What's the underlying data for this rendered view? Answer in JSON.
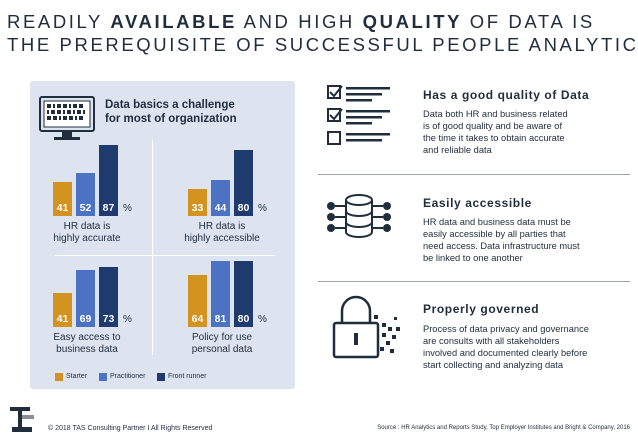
{
  "headline": {
    "line1_a": "READILY ",
    "line1_b": "AVAILABLE",
    "line1_c": " AND HIGH ",
    "line1_d": "QUALITY",
    "line1_e": " OF DATA IS",
    "line2": "THE PREREQUISITE OF SUCCESSFUL PEOPLE ANALYTICS"
  },
  "panel": {
    "title_line1": "Data basics a challenge",
    "title_line2": "for most of organization",
    "pct_symbol": "%"
  },
  "colors": {
    "starter": "#d4921f",
    "practitioner": "#4c72c4",
    "front_runner": "#1e3a6e",
    "panel_bg": "#dde4f0"
  },
  "chart_data": [
    {
      "type": "bar",
      "title_line1": "HR data is",
      "title_line2": "highly accurate",
      "categories": [
        "Starter",
        "Practitioner",
        "Front runner"
      ],
      "values": [
        41,
        52,
        87
      ],
      "ylim": [
        0,
        100
      ]
    },
    {
      "type": "bar",
      "title_line1": "HR data is",
      "title_line2": "highly accessible",
      "categories": [
        "Starter",
        "Practitioner",
        "Front runner"
      ],
      "values": [
        33,
        44,
        80
      ],
      "ylim": [
        0,
        100
      ]
    },
    {
      "type": "bar",
      "title_line1": "Easy access to",
      "title_line2": "business data",
      "categories": [
        "Starter",
        "Practitioner",
        "Front runner"
      ],
      "values": [
        41,
        69,
        73
      ],
      "ylim": [
        0,
        100
      ]
    },
    {
      "type": "bar",
      "title_line1": "Policy for use",
      "title_line2": "personal data",
      "categories": [
        "Starter",
        "Practitioner",
        "Front runner"
      ],
      "values": [
        64,
        81,
        80
      ],
      "ylim": [
        0,
        100
      ]
    }
  ],
  "legend": {
    "starter": "Starter",
    "practitioner": "Practitioner",
    "front_runner": "Front runner"
  },
  "sections": [
    {
      "title": "Has a good quality of Data",
      "body": [
        "Data both HR and business related",
        "is of good quality and be aware of",
        "the time it takes to obtain accurate",
        "and reliable data"
      ]
    },
    {
      "title": "Easily accessible",
      "body": [
        "HR data and business data must be",
        "easily accessible by all parties that",
        "need access. Data infrastructure must",
        "be linked to one another"
      ]
    },
    {
      "title": "Properly governed",
      "body": [
        "Process of data privacy and governance",
        "are consults with all stakeholders",
        "involved and documented clearly before",
        "start collecting and analyzing data"
      ]
    }
  ],
  "footer": {
    "copyright": "© 2018 TAS Consulting Partner  I  All Rights Reserved",
    "source": "Source : HR Analytics and Reports Study, Top Employer Institutes and Bright & Company, 2016"
  },
  "icons": {
    "panel": "computer-data-icon",
    "s1": "checklist-icon",
    "s2": "database-network-icon",
    "s3": "padlock-icon",
    "logo": "tas-logo-icon"
  }
}
